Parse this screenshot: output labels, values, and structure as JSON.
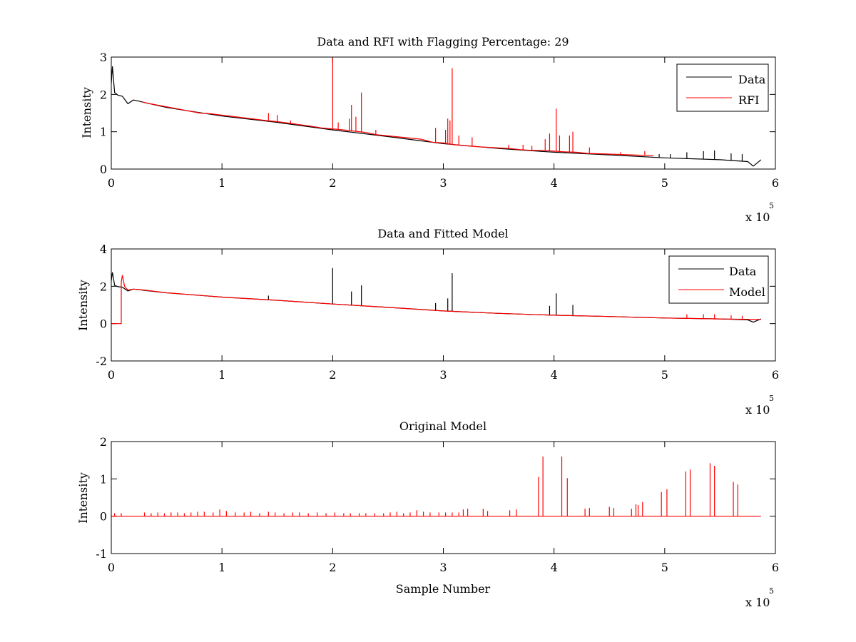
{
  "figure": {
    "background": "#ffffff"
  },
  "colors": {
    "data": "#000000",
    "rfi": "#ff0000",
    "model": "#ff0000",
    "axes": "#000000"
  },
  "chart_data": [
    {
      "type": "line",
      "title": "Data and RFI with Flagging Percentage: 29",
      "xlabel": "",
      "ylabel": "Intensity",
      "xlim": [
        0,
        600000
      ],
      "ylim": [
        0,
        3
      ],
      "xticks": [
        0,
        100000,
        200000,
        300000,
        400000,
        500000,
        600000
      ],
      "xtick_labels": [
        "0",
        "1",
        "2",
        "3",
        "4",
        "5",
        "6"
      ],
      "yticks": [
        0,
        1,
        2,
        3
      ],
      "ytick_labels": [
        "0",
        "1",
        "2",
        "3"
      ],
      "x_exponent": {
        "base": "x 10",
        "power": "5"
      },
      "legend": {
        "position": "top-right",
        "entries": [
          {
            "name": "Data",
            "color": "#000000"
          },
          {
            "name": "RFI",
            "color": "#ff0000"
          }
        ]
      },
      "series": [
        {
          "name": "Data",
          "color": "#000000",
          "x": [
            0,
            1000,
            3000,
            6000,
            10000,
            15000,
            20000,
            25000,
            30000,
            50000,
            100000,
            150000,
            200000,
            250000,
            300000,
            350000,
            400000,
            450000,
            500000,
            550000,
            575000,
            580000,
            583000,
            587000
          ],
          "y": [
            2.3,
            2.75,
            2.05,
            1.98,
            1.95,
            1.75,
            1.85,
            1.82,
            1.78,
            1.65,
            1.42,
            1.25,
            1.05,
            0.87,
            0.68,
            0.55,
            0.45,
            0.38,
            0.3,
            0.25,
            0.2,
            0.08,
            0.15,
            0.25
          ],
          "spikes": [
            {
              "x": 520000,
              "y": 0.45
            },
            {
              "x": 535000,
              "y": 0.48
            },
            {
              "x": 545000,
              "y": 0.5
            },
            {
              "x": 560000,
              "y": 0.42
            },
            {
              "x": 570000,
              "y": 0.4
            },
            {
              "x": 495000,
              "y": 0.4
            },
            {
              "x": 505000,
              "y": 0.4
            }
          ]
        },
        {
          "name": "RFI",
          "color": "#ff0000",
          "x": [
            28000,
            35000,
            80000,
            90000,
            140000,
            150000,
            160000,
            180000,
            190000,
            210000,
            230000,
            240000,
            280000,
            290000,
            300000,
            310000,
            330000,
            360000,
            370000,
            380000,
            390000,
            410000,
            420000,
            430000,
            440000,
            470000,
            490000
          ],
          "y": [
            1.8,
            1.75,
            1.5,
            1.48,
            1.3,
            1.27,
            1.23,
            1.15,
            1.1,
            1.05,
            0.98,
            0.92,
            0.8,
            0.72,
            0.7,
            0.65,
            0.6,
            0.55,
            0.52,
            0.5,
            0.5,
            0.46,
            0.45,
            0.42,
            0.41,
            0.38,
            0.36
          ],
          "spikes": [
            {
              "x": 142000,
              "y": 1.5
            },
            {
              "x": 150000,
              "y": 1.45
            },
            {
              "x": 162000,
              "y": 1.3
            },
            {
              "x": 200000,
              "y": 2.98
            },
            {
              "x": 205000,
              "y": 1.25
            },
            {
              "x": 215000,
              "y": 1.35
            },
            {
              "x": 217000,
              "y": 1.72
            },
            {
              "x": 221000,
              "y": 1.4
            },
            {
              "x": 226000,
              "y": 2.05
            },
            {
              "x": 239000,
              "y": 1.05
            },
            {
              "x": 293000,
              "y": 1.1
            },
            {
              "x": 302000,
              "y": 1.05
            },
            {
              "x": 304000,
              "y": 1.35
            },
            {
              "x": 306000,
              "y": 1.3
            },
            {
              "x": 308000,
              "y": 2.7
            },
            {
              "x": 314000,
              "y": 0.9
            },
            {
              "x": 326000,
              "y": 0.85
            },
            {
              "x": 359000,
              "y": 0.65
            },
            {
              "x": 372000,
              "y": 0.65
            },
            {
              "x": 380000,
              "y": 0.62
            },
            {
              "x": 392000,
              "y": 0.8
            },
            {
              "x": 396000,
              "y": 0.95
            },
            {
              "x": 402000,
              "y": 1.62
            },
            {
              "x": 405000,
              "y": 0.9
            },
            {
              "x": 414000,
              "y": 0.9
            },
            {
              "x": 417000,
              "y": 1.0
            },
            {
              "x": 432000,
              "y": 0.58
            },
            {
              "x": 460000,
              "y": 0.45
            },
            {
              "x": 482000,
              "y": 0.48
            }
          ]
        }
      ]
    },
    {
      "type": "line",
      "title": "Data and Fitted Model",
      "xlabel": "",
      "ylabel": "Intensity",
      "xlim": [
        0,
        600000
      ],
      "ylim": [
        -2,
        4
      ],
      "xticks": [
        0,
        100000,
        200000,
        300000,
        400000,
        500000,
        600000
      ],
      "xtick_labels": [
        "0",
        "1",
        "2",
        "3",
        "4",
        "5",
        "6"
      ],
      "yticks": [
        -2,
        0,
        2,
        4
      ],
      "ytick_labels": [
        "-2",
        "0",
        "2",
        "4"
      ],
      "x_exponent": {
        "base": "x 10",
        "power": "5"
      },
      "legend": {
        "position": "top-right",
        "entries": [
          {
            "name": "Data",
            "color": "#000000"
          },
          {
            "name": "Model",
            "color": "#ff0000"
          }
        ]
      },
      "series": [
        {
          "name": "Data",
          "color": "#000000",
          "x": [
            0,
            1000,
            3000,
            6000,
            10000,
            15000,
            20000,
            25000,
            30000,
            50000,
            100000,
            150000,
            200000,
            250000,
            300000,
            350000,
            400000,
            450000,
            500000,
            550000,
            575000,
            580000,
            583000,
            587000
          ],
          "y": [
            2.3,
            2.75,
            2.05,
            1.98,
            1.95,
            1.75,
            1.85,
            1.82,
            1.78,
            1.65,
            1.42,
            1.25,
            1.05,
            0.87,
            0.68,
            0.55,
            0.45,
            0.38,
            0.3,
            0.25,
            0.2,
            0.08,
            0.15,
            0.25
          ],
          "spikes": [
            {
              "x": 142000,
              "y": 1.5
            },
            {
              "x": 200000,
              "y": 2.98
            },
            {
              "x": 217000,
              "y": 1.72
            },
            {
              "x": 226000,
              "y": 2.05
            },
            {
              "x": 293000,
              "y": 1.1
            },
            {
              "x": 304000,
              "y": 1.35
            },
            {
              "x": 308000,
              "y": 2.7
            },
            {
              "x": 396000,
              "y": 0.95
            },
            {
              "x": 402000,
              "y": 1.62
            },
            {
              "x": 417000,
              "y": 1.0
            }
          ]
        },
        {
          "name": "Model",
          "color": "#ff0000",
          "x": [
            0,
            9000,
            9000,
            10000,
            12000,
            15000,
            20000,
            30000,
            50000,
            100000,
            150000,
            200000,
            250000,
            300000,
            350000,
            400000,
            450000,
            500000,
            550000,
            587000
          ],
          "y": [
            0.0,
            0.0,
            2.2,
            2.6,
            2.0,
            1.8,
            1.85,
            1.8,
            1.65,
            1.42,
            1.25,
            1.05,
            0.87,
            0.68,
            0.55,
            0.45,
            0.38,
            0.3,
            0.25,
            0.22
          ],
          "spikes": [
            {
              "x": 520000,
              "y": 0.5
            },
            {
              "x": 535000,
              "y": 0.5
            },
            {
              "x": 545000,
              "y": 0.5
            },
            {
              "x": 560000,
              "y": 0.45
            },
            {
              "x": 570000,
              "y": 0.42
            }
          ]
        }
      ]
    },
    {
      "type": "line",
      "title": "Original Model",
      "xlabel": "Sample Number",
      "ylabel": "Intensity",
      "xlim": [
        0,
        600000
      ],
      "ylim": [
        -1,
        2
      ],
      "xticks": [
        0,
        100000,
        200000,
        300000,
        400000,
        500000,
        600000
      ],
      "xtick_labels": [
        "0",
        "1",
        "2",
        "3",
        "4",
        "5",
        "6"
      ],
      "yticks": [
        -1,
        0,
        1,
        2
      ],
      "ytick_labels": [
        "-1",
        "0",
        "1",
        "2"
      ],
      "x_exponent": {
        "base": "x 10",
        "power": "5"
      },
      "series": [
        {
          "color": "#ff0000",
          "x": [
            0,
            587000
          ],
          "y": [
            0,
            0
          ],
          "spikes": [
            {
              "x": 3000,
              "y": 0.08
            },
            {
              "x": 9000,
              "y": 0.08
            },
            {
              "x": 30000,
              "y": 0.1
            },
            {
              "x": 36000,
              "y": 0.08
            },
            {
              "x": 42000,
              "y": 0.1
            },
            {
              "x": 48000,
              "y": 0.08
            },
            {
              "x": 54000,
              "y": 0.1
            },
            {
              "x": 60000,
              "y": 0.1
            },
            {
              "x": 66000,
              "y": 0.08
            },
            {
              "x": 72000,
              "y": 0.1
            },
            {
              "x": 78000,
              "y": 0.12
            },
            {
              "x": 84000,
              "y": 0.12
            },
            {
              "x": 92000,
              "y": 0.1
            },
            {
              "x": 98000,
              "y": 0.18
            },
            {
              "x": 104000,
              "y": 0.14
            },
            {
              "x": 112000,
              "y": 0.1
            },
            {
              "x": 120000,
              "y": 0.1
            },
            {
              "x": 126000,
              "y": 0.12
            },
            {
              "x": 134000,
              "y": 0.08
            },
            {
              "x": 142000,
              "y": 0.12
            },
            {
              "x": 148000,
              "y": 0.1
            },
            {
              "x": 156000,
              "y": 0.08
            },
            {
              "x": 164000,
              "y": 0.1
            },
            {
              "x": 170000,
              "y": 0.1
            },
            {
              "x": 178000,
              "y": 0.08
            },
            {
              "x": 186000,
              "y": 0.1
            },
            {
              "x": 194000,
              "y": 0.08
            },
            {
              "x": 202000,
              "y": 0.1
            },
            {
              "x": 210000,
              "y": 0.08
            },
            {
              "x": 216000,
              "y": 0.08
            },
            {
              "x": 224000,
              "y": 0.08
            },
            {
              "x": 230000,
              "y": 0.08
            },
            {
              "x": 238000,
              "y": 0.08
            },
            {
              "x": 246000,
              "y": 0.08
            },
            {
              "x": 252000,
              "y": 0.1
            },
            {
              "x": 258000,
              "y": 0.12
            },
            {
              "x": 264000,
              "y": 0.08
            },
            {
              "x": 270000,
              "y": 0.1
            },
            {
              "x": 276000,
              "y": 0.16
            },
            {
              "x": 282000,
              "y": 0.12
            },
            {
              "x": 288000,
              "y": 0.1
            },
            {
              "x": 296000,
              "y": 0.1
            },
            {
              "x": 302000,
              "y": 0.1
            },
            {
              "x": 308000,
              "y": 0.1
            },
            {
              "x": 314000,
              "y": 0.1
            },
            {
              "x": 318000,
              "y": 0.18
            },
            {
              "x": 322000,
              "y": 0.2
            },
            {
              "x": 336000,
              "y": 0.2
            },
            {
              "x": 340000,
              "y": 0.14
            },
            {
              "x": 360000,
              "y": 0.16
            },
            {
              "x": 366000,
              "y": 0.18
            },
            {
              "x": 386000,
              "y": 1.05
            },
            {
              "x": 390000,
              "y": 1.6
            },
            {
              "x": 407000,
              "y": 1.6
            },
            {
              "x": 412000,
              "y": 1.02
            },
            {
              "x": 428000,
              "y": 0.2
            },
            {
              "x": 432000,
              "y": 0.22
            },
            {
              "x": 450000,
              "y": 0.25
            },
            {
              "x": 454000,
              "y": 0.22
            },
            {
              "x": 470000,
              "y": 0.2
            },
            {
              "x": 474000,
              "y": 0.32
            },
            {
              "x": 476000,
              "y": 0.3
            },
            {
              "x": 480000,
              "y": 0.38
            },
            {
              "x": 497000,
              "y": 0.65
            },
            {
              "x": 502000,
              "y": 0.72
            },
            {
              "x": 519000,
              "y": 1.2
            },
            {
              "x": 523000,
              "y": 1.25
            },
            {
              "x": 541000,
              "y": 1.42
            },
            {
              "x": 545000,
              "y": 1.35
            },
            {
              "x": 562000,
              "y": 0.92
            },
            {
              "x": 566000,
              "y": 0.85
            }
          ]
        }
      ]
    }
  ]
}
